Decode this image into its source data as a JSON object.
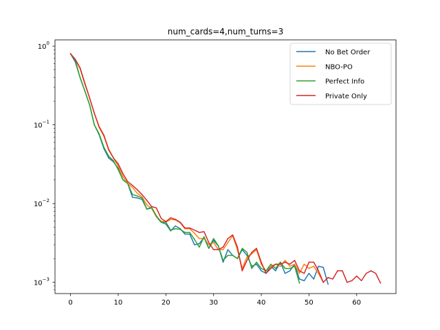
{
  "chart_data": {
    "type": "line",
    "title": "num_cards=4,num_turns=3",
    "xlabel": "",
    "ylabel": "",
    "yscale": "log",
    "xlim": [
      -3.25,
      68.25
    ],
    "ylim": [
      0.00072,
      1.2
    ],
    "xticks": [
      0,
      10,
      20,
      30,
      40,
      50,
      60
    ],
    "yticks": [
      {
        "value": 1,
        "label_base": "10",
        "label_exp": "0"
      },
      {
        "value": 0.1,
        "label_base": "10",
        "label_exp": "−1"
      },
      {
        "value": 0.01,
        "label_base": "10",
        "label_exp": "−2"
      },
      {
        "value": 0.001,
        "label_base": "10",
        "label_exp": "−3"
      }
    ],
    "grid": false,
    "legend_position": "upper right",
    "series": [
      {
        "name": "No Bet Order",
        "color": "#1f77b4",
        "x": [
          0,
          1,
          2,
          3,
          4,
          5,
          6,
          7,
          8,
          9,
          10,
          11,
          12,
          13,
          14,
          15,
          16,
          17,
          18,
          19,
          20,
          21,
          22,
          23,
          24,
          25,
          26,
          27,
          28,
          29,
          30,
          31,
          32,
          33,
          34,
          35,
          36,
          37,
          38,
          39,
          40,
          41,
          42,
          43,
          44,
          45,
          46,
          47,
          48,
          49,
          50,
          51,
          52,
          53,
          54
        ],
        "values": [
          0.8,
          0.63,
          0.4,
          0.27,
          0.18,
          0.1,
          0.075,
          0.05,
          0.038,
          0.034,
          0.028,
          0.02,
          0.018,
          0.012,
          0.0118,
          0.0113,
          0.0085,
          0.0088,
          0.0068,
          0.0058,
          0.0055,
          0.0045,
          0.0052,
          0.0048,
          0.0041,
          0.0041,
          0.003,
          0.0031,
          0.0037,
          0.0027,
          0.0034,
          0.0029,
          0.0018,
          0.0026,
          0.0022,
          0.002,
          0.0026,
          0.0022,
          0.0016,
          0.0017,
          0.0014,
          0.0013,
          0.0016,
          0.0014,
          0.0018,
          0.0013,
          0.0014,
          0.0017,
          0.0011,
          0.00105,
          0.0013,
          0.0011,
          0.0016,
          0.00155,
          0.00095
        ]
      },
      {
        "name": "NBO-PO",
        "color": "#ff7f0e",
        "x": [
          0,
          1,
          2,
          3,
          4,
          5,
          6,
          7,
          8,
          9,
          10,
          11,
          12,
          13,
          14,
          15,
          16,
          17,
          18,
          19,
          20,
          21,
          22,
          23,
          24,
          25,
          26,
          27,
          28,
          29,
          30,
          31,
          32,
          33,
          34,
          35,
          36,
          37,
          38,
          39,
          40,
          41,
          42,
          43,
          44,
          45,
          46,
          47,
          48,
          49,
          50,
          51,
          52,
          53
        ],
        "values": [
          0.8,
          0.67,
          0.52,
          0.33,
          0.22,
          0.14,
          0.093,
          0.072,
          0.048,
          0.038,
          0.03,
          0.022,
          0.018,
          0.016,
          0.0135,
          0.0122,
          0.0096,
          0.0087,
          0.0068,
          0.006,
          0.0058,
          0.0063,
          0.0062,
          0.0057,
          0.0048,
          0.0048,
          0.0042,
          0.0036,
          0.0036,
          0.003,
          0.0032,
          0.0026,
          0.0026,
          0.0032,
          0.0039,
          0.0026,
          0.0015,
          0.0021,
          0.0023,
          0.0026,
          0.0017,
          0.0014,
          0.0016,
          0.0017,
          0.0016,
          0.0019,
          0.0016,
          0.0017,
          0.0013,
          0.0017,
          0.0015,
          0.0016,
          0.0013,
          0.001
        ]
      },
      {
        "name": "Perfect Info",
        "color": "#2ca02c",
        "x": [
          0,
          1,
          2,
          3,
          4,
          5,
          6,
          7,
          8,
          9,
          10,
          11,
          12,
          13,
          14,
          15,
          16,
          17,
          18,
          19,
          20,
          21,
          22,
          23,
          24,
          25,
          26,
          27,
          28,
          29,
          30,
          31,
          32,
          33,
          34,
          35,
          36,
          37,
          38,
          39,
          40,
          41,
          42,
          43,
          44,
          45,
          46,
          47,
          48
        ],
        "values": [
          0.8,
          0.66,
          0.4,
          0.27,
          0.18,
          0.1,
          0.077,
          0.052,
          0.04,
          0.035,
          0.027,
          0.02,
          0.018,
          0.013,
          0.0125,
          0.0118,
          0.0085,
          0.009,
          0.007,
          0.0058,
          0.0058,
          0.0046,
          0.0048,
          0.0047,
          0.0043,
          0.0043,
          0.0035,
          0.0028,
          0.0038,
          0.0027,
          0.0036,
          0.0029,
          0.0019,
          0.0022,
          0.0022,
          0.002,
          0.0027,
          0.0024,
          0.0015,
          0.0018,
          0.0015,
          0.0014,
          0.0017,
          0.0015,
          0.0018,
          0.0015,
          0.0015,
          0.0016,
          0.00098
        ]
      },
      {
        "name": "Private Only",
        "color": "#d62728",
        "x": [
          0,
          1,
          2,
          3,
          4,
          5,
          6,
          7,
          8,
          9,
          10,
          11,
          12,
          13,
          14,
          15,
          16,
          17,
          18,
          19,
          20,
          21,
          22,
          23,
          24,
          25,
          26,
          27,
          28,
          29,
          30,
          31,
          32,
          33,
          34,
          35,
          36,
          37,
          38,
          39,
          40,
          41,
          42,
          43,
          44,
          45,
          46,
          47,
          48,
          49,
          50,
          51,
          52,
          53,
          54,
          55,
          56,
          57,
          58,
          59,
          60,
          61,
          62,
          63,
          64,
          65
        ],
        "values": [
          0.8,
          0.68,
          0.53,
          0.34,
          0.22,
          0.14,
          0.095,
          0.074,
          0.049,
          0.038,
          0.032,
          0.024,
          0.019,
          0.017,
          0.015,
          0.013,
          0.011,
          0.0092,
          0.0088,
          0.0065,
          0.0059,
          0.0066,
          0.0063,
          0.0058,
          0.0049,
          0.0049,
          0.0046,
          0.0043,
          0.0044,
          0.0032,
          0.0026,
          0.0026,
          0.0028,
          0.0036,
          0.004,
          0.0028,
          0.0014,
          0.0019,
          0.0024,
          0.0027,
          0.0018,
          0.0013,
          0.0015,
          0.0017,
          0.0017,
          0.0018,
          0.0017,
          0.0019,
          0.0014,
          0.0013,
          0.0018,
          0.0018,
          0.0014,
          0.001,
          0.00115,
          0.0011,
          0.0014,
          0.0014,
          0.001,
          0.00105,
          0.0012,
          0.00105,
          0.0013,
          0.0014,
          0.0013,
          0.00098
        ]
      }
    ]
  }
}
